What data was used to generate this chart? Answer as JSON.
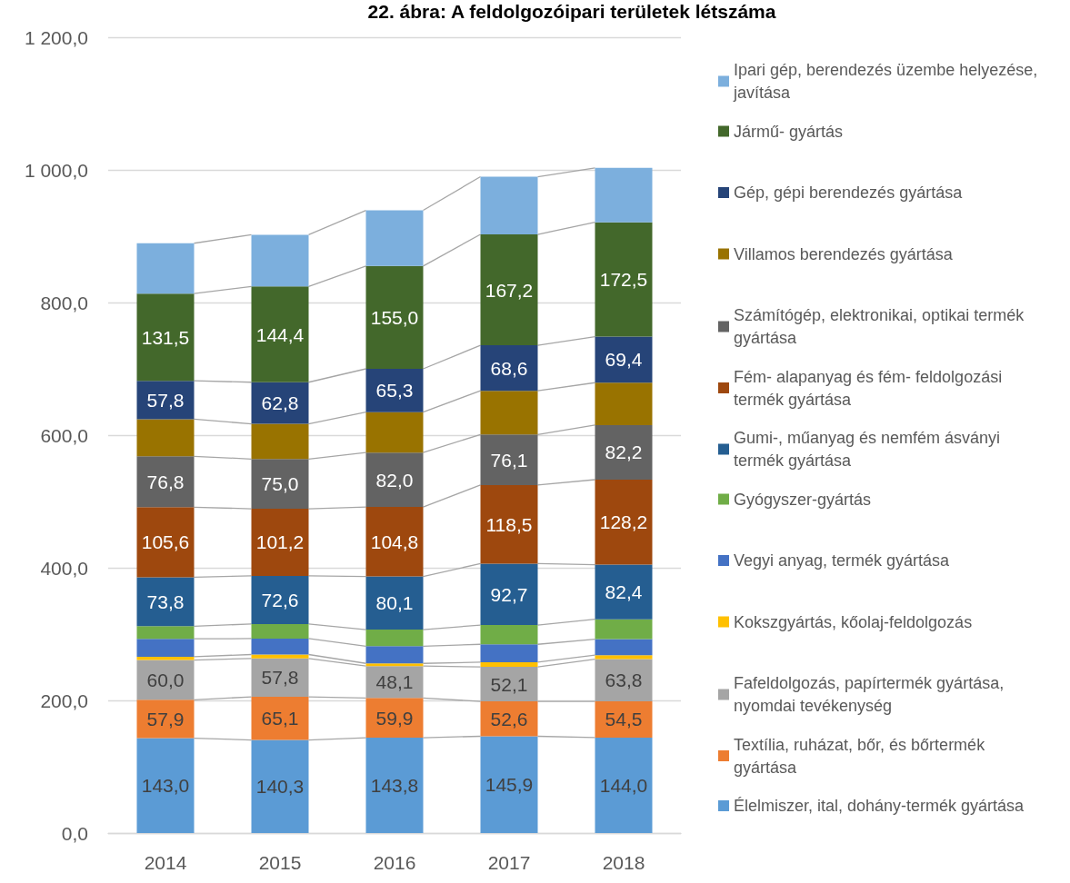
{
  "chart_data": {
    "type": "bar",
    "title": "22. ábra: A feldolgozóipari területek létszáma",
    "categories": [
      "2014",
      "2015",
      "2016",
      "2017",
      "2018"
    ],
    "stacked": true,
    "ylim": [
      0,
      1200
    ],
    "yticks": [
      {
        "value": 0,
        "label": "0,0"
      },
      {
        "value": 200,
        "label": "200,0"
      },
      {
        "value": 400,
        "label": "400,0"
      },
      {
        "value": 600,
        "label": "600,0"
      },
      {
        "value": 800,
        "label": "800,0"
      },
      {
        "value": 1000,
        "label": "1 000,0"
      },
      {
        "value": 1200,
        "label": "1 200,0"
      }
    ],
    "grid": "y",
    "legend": "right",
    "series": [
      {
        "name": "Élelmiszer, ital, dohány-termék gyártása",
        "color": "#5b9bd5",
        "values": [
          143.0,
          140.3,
          143.8,
          145.9,
          144.0
        ],
        "value_labels": [
          "143,0",
          "140,3",
          "143,8",
          "145,9",
          "144,0"
        ]
      },
      {
        "name": "Textília, ruházat, bőr, és bőrtermék gyártása",
        "color": "#ed7d31",
        "values": [
          57.9,
          65.1,
          59.9,
          52.6,
          54.5
        ],
        "value_labels": [
          "57,9",
          "65,1",
          "59,9",
          "52,6",
          "54,5"
        ]
      },
      {
        "name": "Fafeldolgozás, papírtermék gyártása, nyomdai tevékenység",
        "color": "#a5a5a5",
        "values": [
          60.0,
          57.8,
          48.1,
          52.1,
          63.8
        ],
        "value_labels": [
          "60,0",
          "57,8",
          "48,1",
          "52,1",
          "63,8"
        ]
      },
      {
        "name": "Kokszgyártás, kőolaj-feldolgozás",
        "color": "#ffc000",
        "values": [
          5,
          6,
          4,
          7,
          6
        ]
      },
      {
        "name": "Vegyi anyag, termék gyártása",
        "color": "#4472c4",
        "values": [
          27,
          24,
          26,
          27,
          24
        ]
      },
      {
        "name": "Gyógyszer-gyártás",
        "color": "#70ad47",
        "values": [
          19,
          22,
          25,
          29,
          30
        ]
      },
      {
        "name": "Gumi-, műanyag és nemfém ásványi termék gyártása",
        "color": "#255e91",
        "values": [
          73.8,
          72.6,
          80.1,
          92.7,
          82.4
        ],
        "value_labels": [
          "73,8",
          "72,6",
          "80,1",
          "92,7",
          "82,4"
        ]
      },
      {
        "name": "Fém- alapanyag és fém- feldolgozási termék gyártása",
        "color": "#9e480e",
        "values": [
          105.6,
          101.2,
          104.8,
          118.5,
          128.2
        ],
        "value_labels": [
          "105,6",
          "101,2",
          "104,8",
          "118,5",
          "128,2"
        ]
      },
      {
        "name": "Számítógép, elektronikai, optikai termék gyártása",
        "color": "#636363",
        "values": [
          76.8,
          75.0,
          82.0,
          76.1,
          82.2
        ],
        "value_labels": [
          "76,8",
          "75,0",
          "82,0",
          "76,1",
          "82,2"
        ]
      },
      {
        "name": "Villamos berendezés gyártása",
        "color": "#997300",
        "values": [
          56,
          53,
          61,
          66,
          64
        ]
      },
      {
        "name": "Gép, gépi berendezés gyártása",
        "color": "#264478",
        "values": [
          57.8,
          62.8,
          65.3,
          68.6,
          69.4
        ],
        "value_labels": [
          "57,8",
          "62,8",
          "65,3",
          "68,6",
          "69,4"
        ]
      },
      {
        "name": "Jármű- gyártás",
        "color": "#43682b",
        "values": [
          131.5,
          144.4,
          155.0,
          167.2,
          172.5
        ],
        "value_labels": [
          "131,5",
          "144,4",
          "155,0",
          "167,2",
          "172,5"
        ]
      },
      {
        "name": "Ipari gép, berendezés üzembe helyezése, javítása",
        "color": "#7cafdd",
        "values": [
          76,
          78,
          84,
          87,
          82
        ]
      }
    ]
  }
}
